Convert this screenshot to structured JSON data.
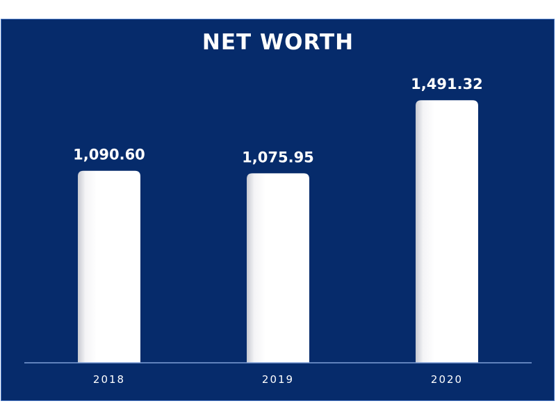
{
  "chart_data": {
    "type": "bar",
    "title": "NET WORTH",
    "categories": [
      "2018",
      "2019",
      "2020"
    ],
    "values": [
      1090.6,
      1075.95,
      1491.32
    ],
    "value_labels": [
      "1,090.60",
      "1,075.95",
      "1,491.32"
    ],
    "ylim": [
      0,
      1500
    ],
    "xlabel": "",
    "ylabel": "",
    "grid": false,
    "legend": "none"
  },
  "colors": {
    "background": "#062b6b",
    "bar": "#ffffff",
    "axis": "#7f9fd8"
  }
}
